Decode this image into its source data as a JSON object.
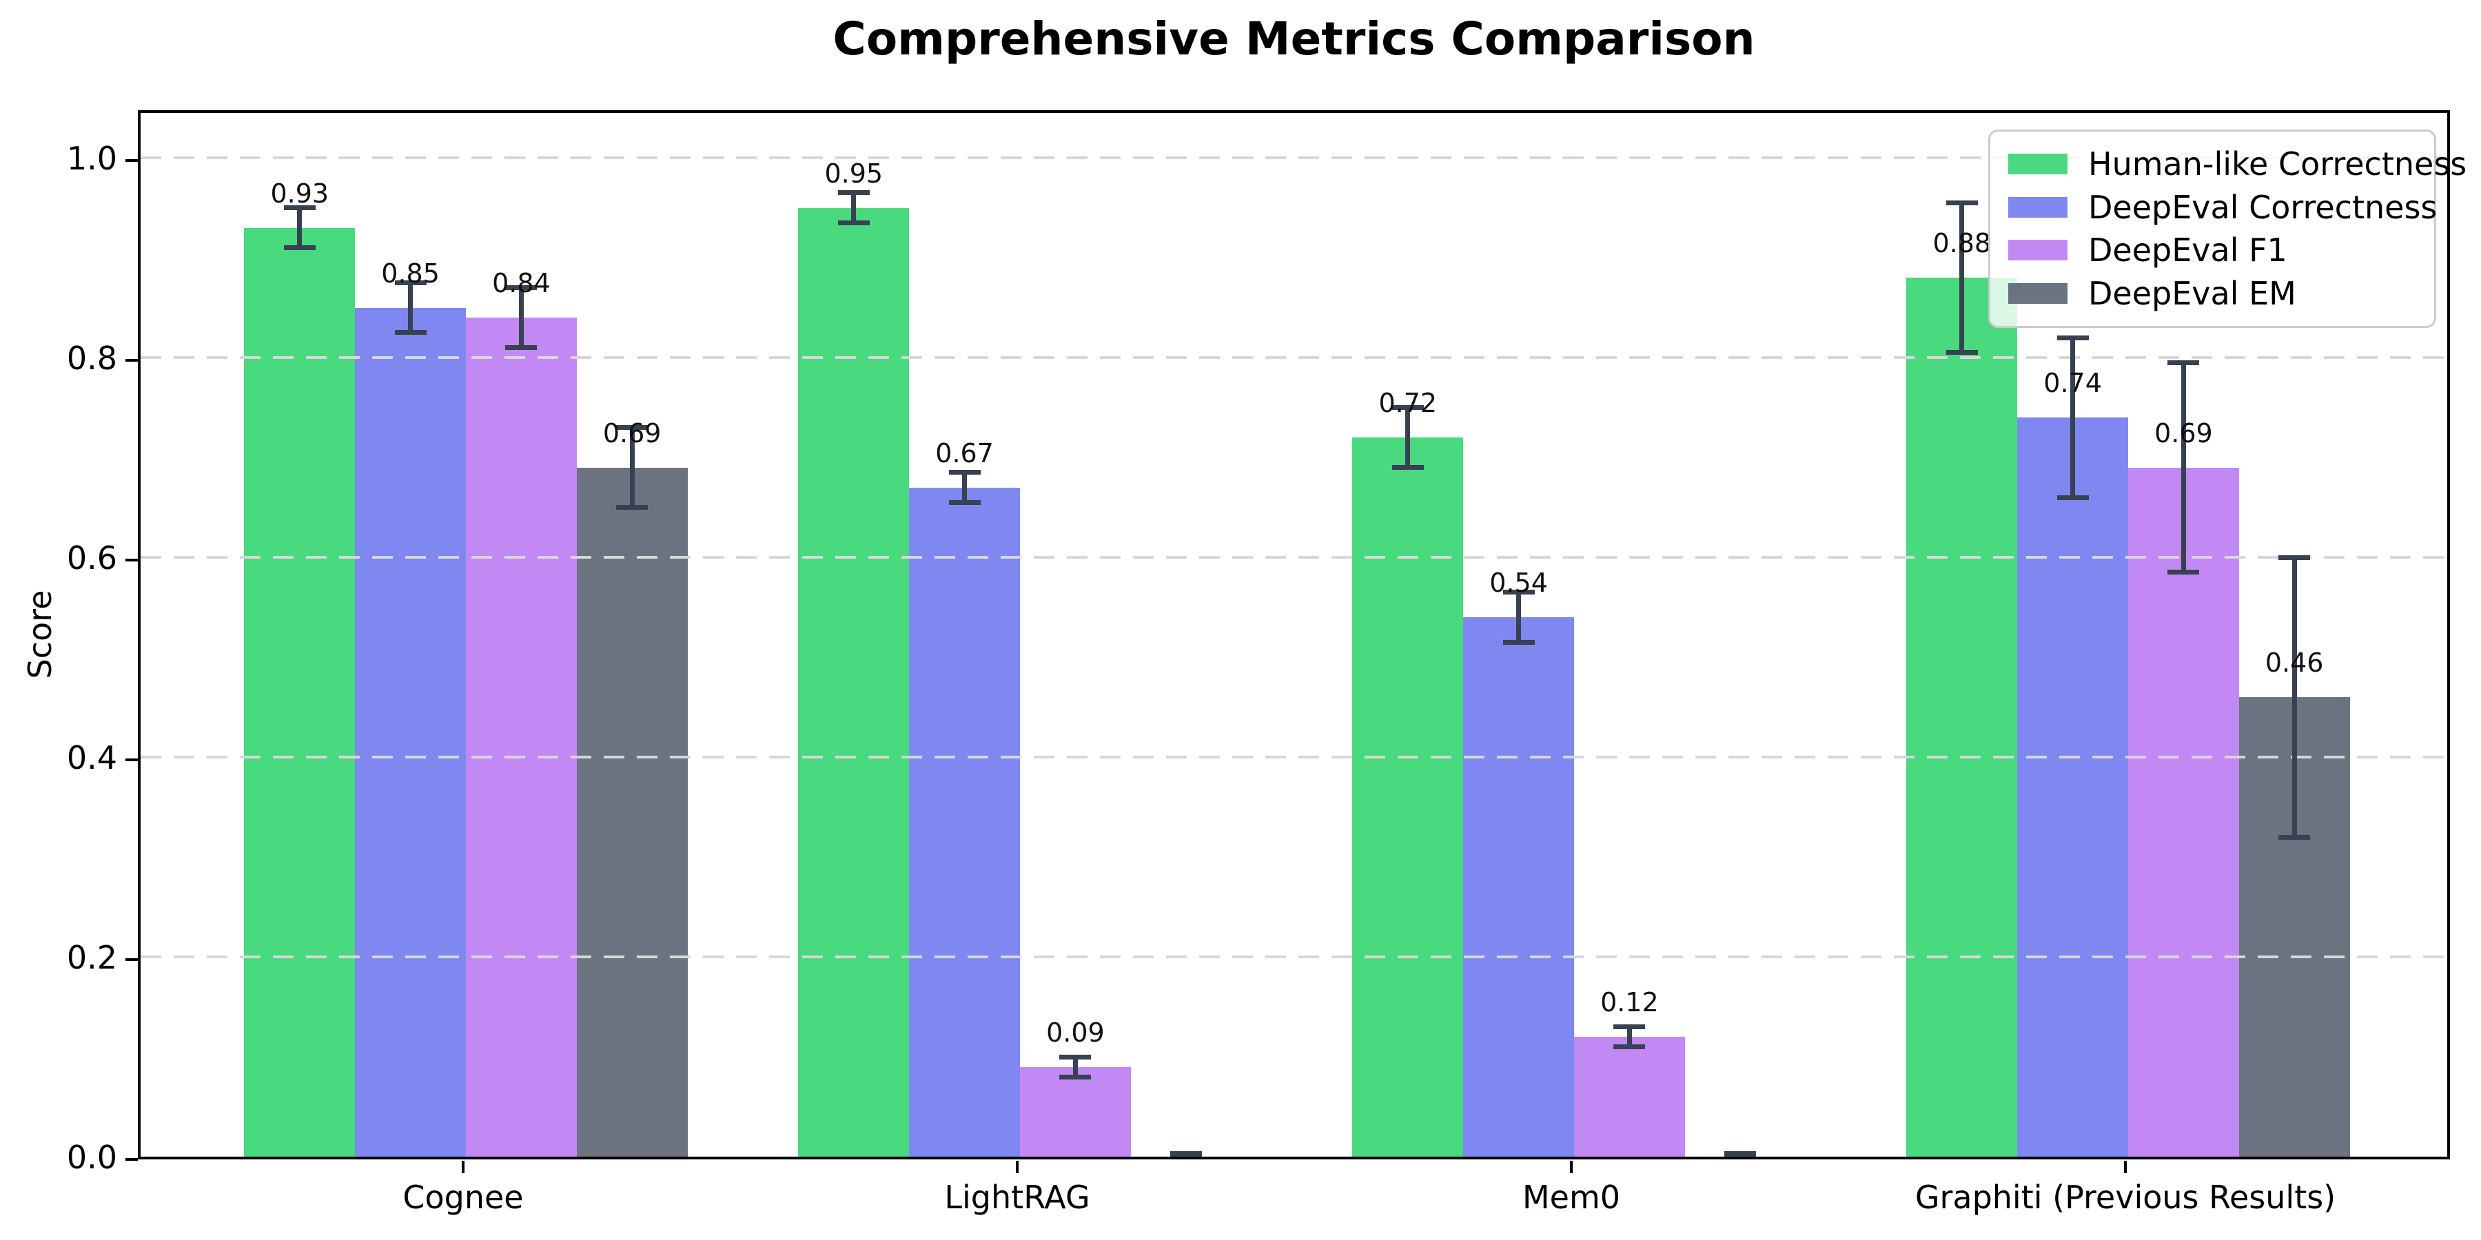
{
  "title": "Comprehensive Metrics Comparison",
  "chart_data": {
    "type": "bar",
    "title": "Comprehensive Metrics Comparison",
    "xlabel": "",
    "ylabel": "Score",
    "ylim": [
      0,
      1.05
    ],
    "yticks": [
      "0.0",
      "0.2",
      "0.4",
      "0.6",
      "0.8",
      "1.0"
    ],
    "grid": "horizontal-dashed",
    "legend_position": "upper right",
    "categories": [
      "Cognee",
      "LightRAG",
      "Mem0",
      "Graphiti (Previous Results)"
    ],
    "series": [
      {
        "name": "Human-like Correctness",
        "color": "#49d97f",
        "values": [
          0.93,
          0.95,
          0.72,
          0.88
        ],
        "errors": [
          0.02,
          0.015,
          0.03,
          0.075
        ],
        "labels": [
          "0.93",
          "0.95",
          "0.72",
          "0.88"
        ]
      },
      {
        "name": "DeepEval Correctness",
        "color": "#7e88f0",
        "values": [
          0.85,
          0.67,
          0.54,
          0.74
        ],
        "errors": [
          0.025,
          0.015,
          0.025,
          0.08
        ],
        "labels": [
          "0.85",
          "0.67",
          "0.54",
          "0.74"
        ]
      },
      {
        "name": "DeepEval F1",
        "color": "#c289f4",
        "values": [
          0.84,
          0.09,
          0.12,
          0.69
        ],
        "errors": [
          0.03,
          0.01,
          0.01,
          0.105
        ],
        "labels": [
          "0.84",
          "0.09",
          "0.12",
          "0.69"
        ]
      },
      {
        "name": "DeepEval EM",
        "color": "#6b7280",
        "values": [
          0.69,
          0.0,
          0.0,
          0.46
        ],
        "errors": [
          0.04,
          0.003,
          0.003,
          0.14
        ],
        "labels": [
          "0.69",
          "",
          "",
          "0.46"
        ]
      }
    ],
    "error_bar_color": "#374151"
  }
}
